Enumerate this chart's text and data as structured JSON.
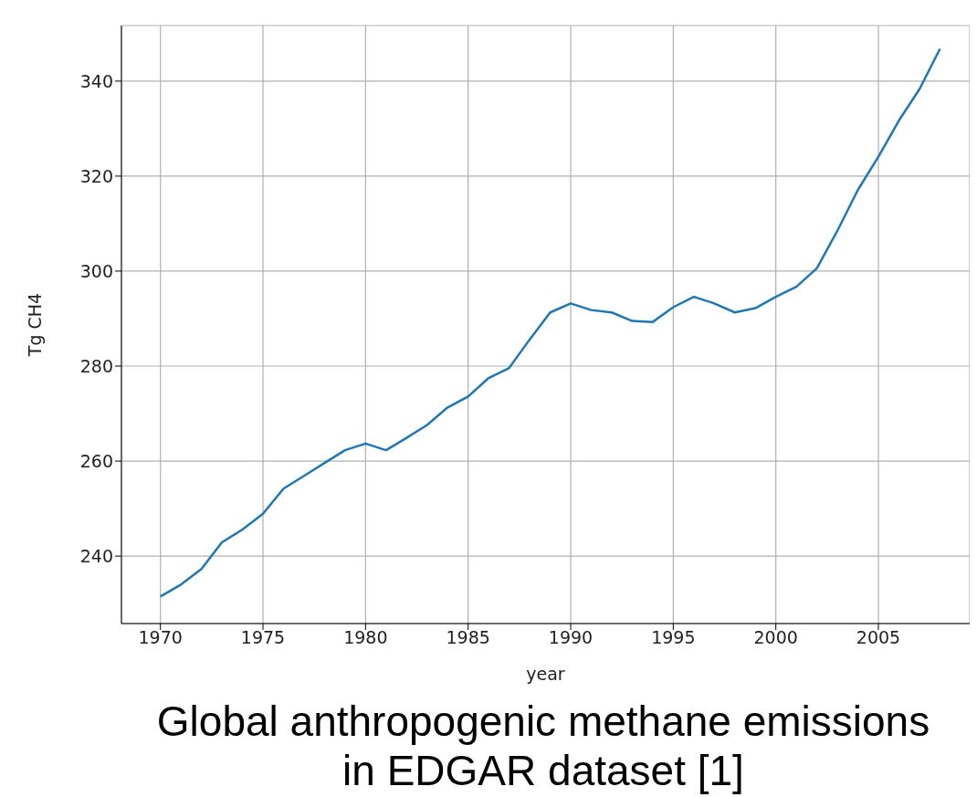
{
  "chart_data": {
    "type": "line",
    "title": "Global anthropogenic methane emissions in EDGAR dataset [1]",
    "xlabel": "year",
    "ylabel": "Tg CH4",
    "x": [
      1970,
      1971,
      1972,
      1973,
      1974,
      1975,
      1976,
      1977,
      1978,
      1979,
      1980,
      1981,
      1982,
      1983,
      1984,
      1985,
      1986,
      1987,
      1988,
      1989,
      1990,
      1991,
      1992,
      1993,
      1994,
      1995,
      1996,
      1997,
      1998,
      1999,
      2000,
      2001,
      2002,
      2003,
      2004,
      2005,
      2006,
      2007,
      2008
    ],
    "series": [
      {
        "color": "#1f77b4",
        "values": [
          231.5,
          234,
          237.3,
          242.9,
          245.6,
          248.9,
          254.2,
          256.9,
          259.6,
          262.3,
          263.7,
          262.3,
          264.9,
          267.6,
          271.3,
          273.6,
          277.5,
          279.6,
          285.6,
          291.3,
          293.2,
          291.8,
          291.3,
          289.5,
          289.3,
          292.4,
          294.6,
          293.2,
          291.3,
          292.2,
          294.6,
          296.7,
          300.6,
          308.5,
          317.1,
          324.1,
          331.7,
          338.3,
          346.8
        ]
      }
    ],
    "xlim": [
      1968.1,
      2009.45
    ],
    "ylim": [
      225.8,
      351.7
    ],
    "xticks": [
      1970,
      1975,
      1980,
      1985,
      1990,
      1995,
      2000,
      2005
    ],
    "yticks": [
      240,
      260,
      280,
      300,
      320,
      340
    ],
    "grid": true,
    "legend": false,
    "marker": "none",
    "line_style": "solid"
  }
}
